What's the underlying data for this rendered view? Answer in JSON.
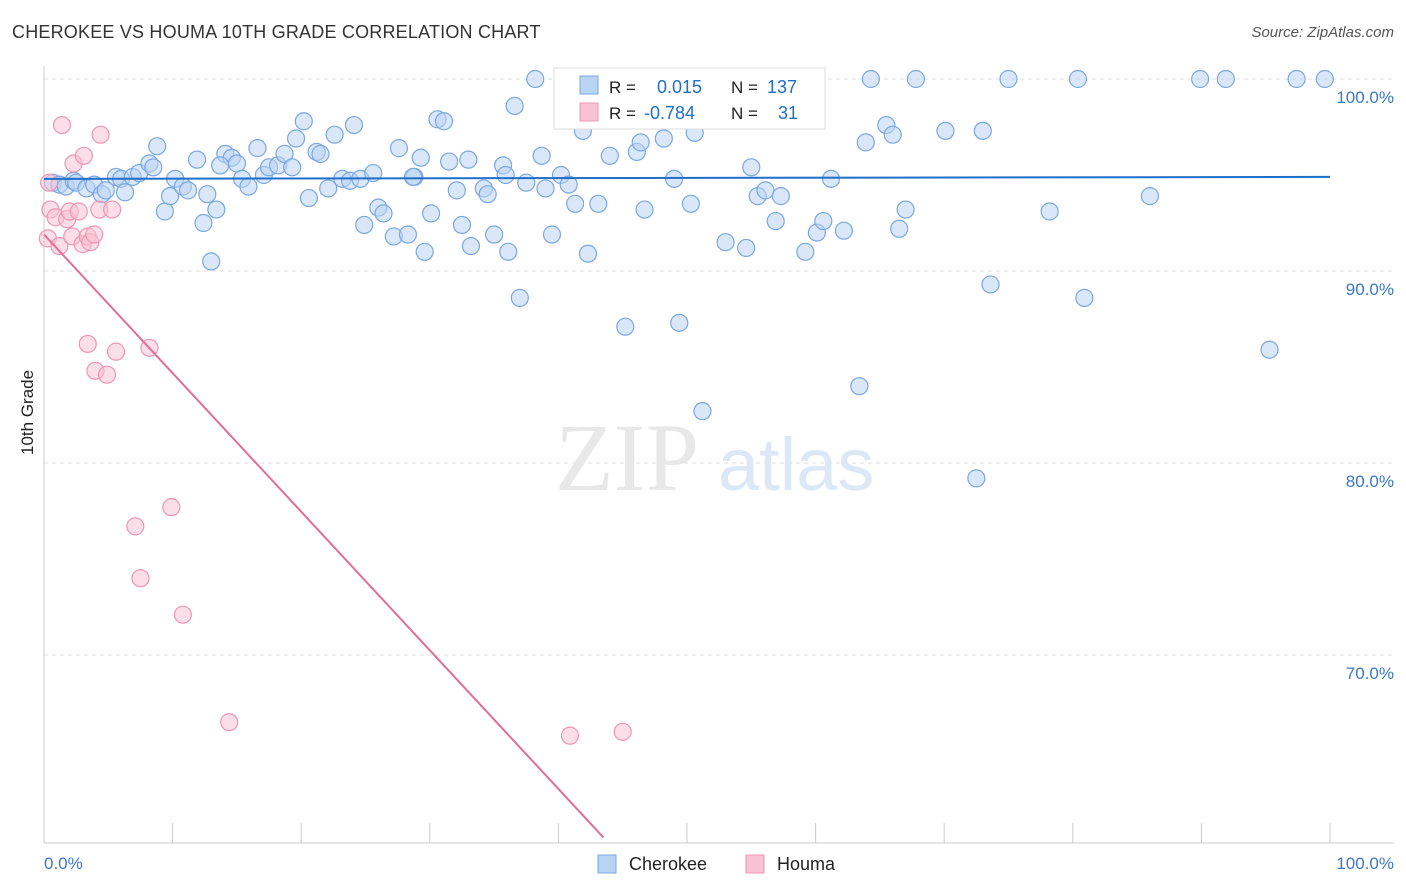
{
  "title": "CHEROKEE VS HOUMA 10TH GRADE CORRELATION CHART",
  "source": "Source: ZipAtlas.com",
  "watermark": {
    "zip": "ZIP",
    "atlas": "atlas"
  },
  "colors": {
    "cherokee_fill": "#b9d3f3",
    "cherokee_stroke": "#7aa8e0",
    "cherokee_line": "#1f6ec9",
    "houma_fill": "#f7c3d4",
    "houma_stroke": "#ee96b4",
    "houma_line": "#e26d98",
    "axis_text": "#3d78c7",
    "grid": "#dddddd"
  },
  "legend": {
    "rows": [
      {
        "r_label": "R =",
        "r_value": "0.015",
        "n_label": "N =",
        "n_value": "137"
      },
      {
        "r_label": "R =",
        "r_value": "-0.784",
        "n_label": "N =",
        "n_value": "31"
      }
    ]
  },
  "chart_data": {
    "type": "scatter",
    "title": "CHEROKEE VS HOUMA 10TH GRADE CORRELATION CHART",
    "xlabel": "",
    "ylabel": "10th Grade",
    "xlim": [
      0,
      100
    ],
    "ylim": [
      60.5,
      102
    ],
    "x_tick_labels": [
      "0.0%",
      "100.0%"
    ],
    "y_ticks": [
      70,
      80,
      90,
      100
    ],
    "y_tick_labels": [
      "70.0%",
      "80.0%",
      "90.0%",
      "100.0%"
    ],
    "grid": true,
    "legend_position": "bottom",
    "series": [
      {
        "name": "Cherokee",
        "r": 0.015,
        "n": 137,
        "trend": {
          "x": [
            0,
            100
          ],
          "y": [
            94.8,
            94.9
          ]
        },
        "points": [
          [
            0.7,
            94.6
          ],
          [
            1.2,
            94.5
          ],
          [
            1.7,
            94.4
          ],
          [
            2.3,
            94.7
          ],
          [
            2.5,
            94.6
          ],
          [
            3.3,
            94.3
          ],
          [
            3.9,
            94.5
          ],
          [
            4.5,
            94.0
          ],
          [
            4.8,
            94.2
          ],
          [
            5.6,
            94.9
          ],
          [
            6.0,
            94.8
          ],
          [
            6.3,
            94.1
          ],
          [
            6.9,
            94.9
          ],
          [
            7.4,
            95.1
          ],
          [
            8.2,
            95.6
          ],
          [
            8.5,
            95.4
          ],
          [
            8.8,
            96.5
          ],
          [
            9.4,
            93.1
          ],
          [
            9.8,
            93.9
          ],
          [
            10.2,
            94.8
          ],
          [
            10.8,
            94.4
          ],
          [
            11.2,
            94.2
          ],
          [
            11.9,
            95.8
          ],
          [
            12.4,
            92.5
          ],
          [
            13.0,
            90.5
          ],
          [
            13.4,
            93.2
          ],
          [
            14.1,
            96.1
          ],
          [
            14.6,
            95.9
          ],
          [
            15.0,
            95.6
          ],
          [
            15.4,
            94.8
          ],
          [
            15.9,
            94.4
          ],
          [
            16.6,
            96.4
          ],
          [
            17.1,
            95.0
          ],
          [
            17.5,
            95.4
          ],
          [
            18.2,
            95.5
          ],
          [
            18.7,
            96.1
          ],
          [
            19.3,
            95.4
          ],
          [
            19.6,
            96.9
          ],
          [
            20.2,
            97.8
          ],
          [
            20.6,
            93.8
          ],
          [
            21.2,
            96.2
          ],
          [
            21.5,
            96.1
          ],
          [
            22.1,
            94.3
          ],
          [
            22.6,
            97.1
          ],
          [
            23.2,
            94.8
          ],
          [
            23.8,
            94.7
          ],
          [
            24.1,
            97.6
          ],
          [
            24.6,
            94.8
          ],
          [
            24.9,
            92.4
          ],
          [
            25.6,
            95.1
          ],
          [
            26.0,
            93.3
          ],
          [
            26.4,
            93.0
          ],
          [
            27.2,
            91.8
          ],
          [
            27.6,
            96.4
          ],
          [
            28.3,
            91.9
          ],
          [
            28.8,
            94.9
          ],
          [
            29.3,
            95.9
          ],
          [
            29.6,
            91.0
          ],
          [
            30.1,
            93.0
          ],
          [
            30.6,
            97.9
          ],
          [
            31.1,
            97.8
          ],
          [
            31.5,
            95.7
          ],
          [
            32.1,
            94.2
          ],
          [
            32.5,
            92.4
          ],
          [
            33.0,
            95.8
          ],
          [
            33.2,
            91.3
          ],
          [
            34.2,
            94.3
          ],
          [
            34.5,
            94.0
          ],
          [
            35.0,
            91.9
          ],
          [
            35.7,
            95.5
          ],
          [
            36.1,
            91.0
          ],
          [
            36.6,
            98.6
          ],
          [
            37.0,
            88.6
          ],
          [
            37.5,
            94.6
          ],
          [
            38.2,
            100.0
          ],
          [
            38.7,
            96.0
          ],
          [
            39.0,
            94.3
          ],
          [
            39.5,
            91.9
          ],
          [
            40.2,
            95.0
          ],
          [
            40.8,
            94.5
          ],
          [
            41.3,
            93.5
          ],
          [
            41.9,
            97.3
          ],
          [
            42.3,
            90.9
          ],
          [
            42.8,
            99.1
          ],
          [
            43.1,
            93.5
          ],
          [
            44.0,
            96.0
          ],
          [
            44.6,
            100.0
          ],
          [
            45.2,
            87.1
          ],
          [
            46.1,
            96.2
          ],
          [
            46.4,
            96.7
          ],
          [
            47.0,
            100.0
          ],
          [
            48.2,
            96.9
          ],
          [
            49.0,
            94.8
          ],
          [
            49.4,
            87.3
          ],
          [
            50.3,
            93.5
          ],
          [
            50.6,
            97.2
          ],
          [
            51.2,
            82.7
          ],
          [
            53.0,
            91.5
          ],
          [
            54.6,
            91.2
          ],
          [
            55.0,
            95.4
          ],
          [
            55.5,
            93.9
          ],
          [
            56.1,
            94.2
          ],
          [
            56.9,
            92.6
          ],
          [
            58.0,
            100.0
          ],
          [
            59.2,
            91.0
          ],
          [
            60.1,
            92.0
          ],
          [
            60.6,
            92.6
          ],
          [
            61.2,
            94.8
          ],
          [
            62.2,
            92.1
          ],
          [
            63.4,
            84.0
          ],
          [
            64.3,
            100.0
          ],
          [
            65.5,
            97.6
          ],
          [
            66.0,
            97.1
          ],
          [
            66.5,
            92.2
          ],
          [
            67.0,
            93.2
          ],
          [
            67.8,
            100.0
          ],
          [
            70.1,
            97.3
          ],
          [
            72.5,
            79.2
          ],
          [
            73.0,
            97.3
          ],
          [
            73.6,
            89.3
          ],
          [
            75.0,
            100.0
          ],
          [
            78.2,
            93.1
          ],
          [
            80.4,
            100.0
          ],
          [
            80.9,
            88.6
          ],
          [
            86.0,
            93.9
          ],
          [
            89.9,
            100.0
          ],
          [
            91.9,
            100.0
          ],
          [
            95.3,
            85.9
          ],
          [
            97.4,
            100.0
          ],
          [
            99.6,
            100.0
          ],
          [
            57.3,
            93.9
          ],
          [
            63.9,
            96.7
          ],
          [
            28.7,
            94.9
          ],
          [
            46.7,
            93.2
          ],
          [
            35.9,
            95.0
          ],
          [
            13.7,
            95.5
          ],
          [
            12.7,
            94.0
          ]
        ]
      },
      {
        "name": "Houma",
        "r": -0.784,
        "n": 31,
        "trend": {
          "x": [
            0,
            43.5
          ],
          "y": [
            91.9,
            60.5
          ]
        },
        "points": [
          [
            0.3,
            91.7
          ],
          [
            0.4,
            94.6
          ],
          [
            0.5,
            93.2
          ],
          [
            0.9,
            92.8
          ],
          [
            1.2,
            91.3
          ],
          [
            1.4,
            97.6
          ],
          [
            1.8,
            92.7
          ],
          [
            2.0,
            93.1
          ],
          [
            2.2,
            91.8
          ],
          [
            2.3,
            95.6
          ],
          [
            2.7,
            93.1
          ],
          [
            3.0,
            91.4
          ],
          [
            3.1,
            96.0
          ],
          [
            3.4,
            91.8
          ],
          [
            3.6,
            91.5
          ],
          [
            3.4,
            86.2
          ],
          [
            3.9,
            91.9
          ],
          [
            4.0,
            84.8
          ],
          [
            4.3,
            93.2
          ],
          [
            4.4,
            97.1
          ],
          [
            4.9,
            84.6
          ],
          [
            5.3,
            93.2
          ],
          [
            5.6,
            85.8
          ],
          [
            7.1,
            76.7
          ],
          [
            7.5,
            74.0
          ],
          [
            8.2,
            86.0
          ],
          [
            9.9,
            77.7
          ],
          [
            10.8,
            72.1
          ],
          [
            14.4,
            66.5
          ],
          [
            40.9,
            65.8
          ],
          [
            45.0,
            66.0
          ]
        ]
      }
    ]
  },
  "x_labels": {
    "left": "0.0%",
    "right": "100.0%"
  },
  "bottom_legend": {
    "cherokee": "Cherokee",
    "houma": "Houma"
  }
}
